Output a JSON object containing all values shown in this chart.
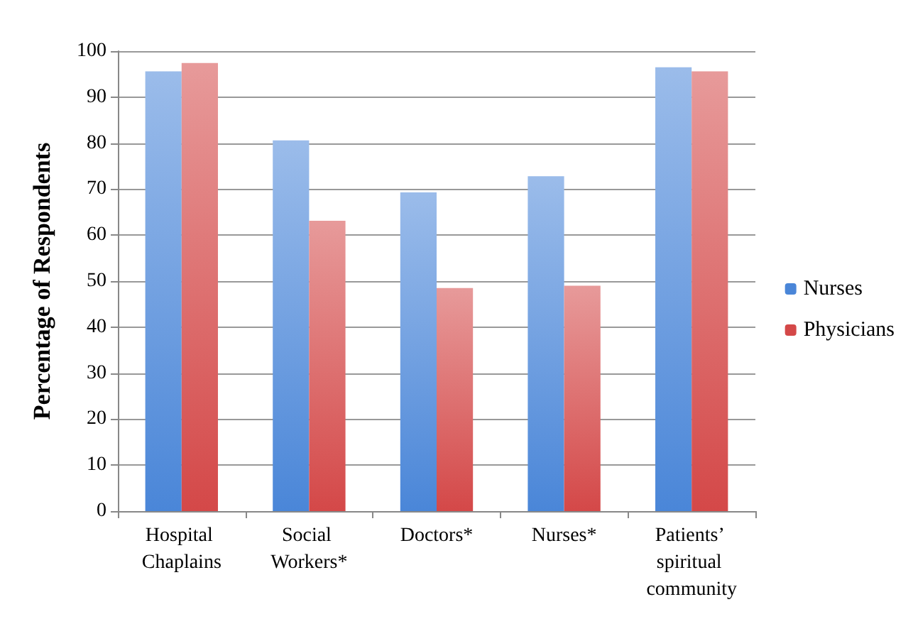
{
  "chart_data": {
    "type": "bar",
    "ylabel": "Percentage of Respondents",
    "categories": [
      "Hospital Chaplains",
      "Social Workers*",
      "Doctors*",
      "Nurses*",
      "Patients’ spiritual community"
    ],
    "series": [
      {
        "name": "Nurses",
        "color": "#4a86d8",
        "values": [
          95.6,
          80.6,
          69.3,
          72.8,
          96.5
        ]
      },
      {
        "name": "Physicians",
        "color": "#d44848",
        "values": [
          97.4,
          63.1,
          48.5,
          49.0,
          95.6
        ]
      }
    ],
    "ylim": [
      0,
      100
    ],
    "yticks": [
      0,
      10,
      20,
      30,
      40,
      50,
      60,
      70,
      80,
      90,
      100
    ],
    "grid": "y",
    "legend": "right"
  }
}
